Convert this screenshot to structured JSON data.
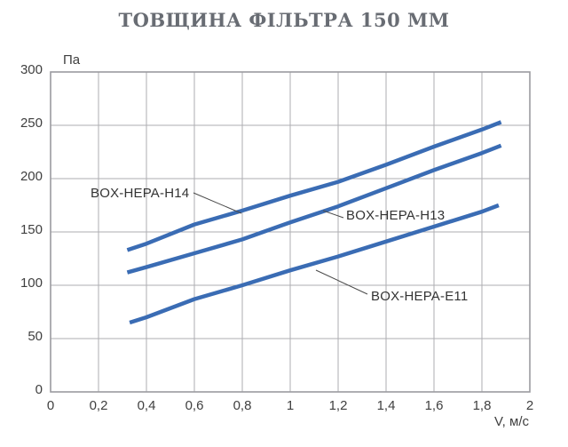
{
  "chart_data": {
    "type": "line",
    "title": "ТОВЩИНА ФІЛЬТРА 150 ММ",
    "y_unit_label": "Па",
    "x_unit_label": "V, м/с",
    "xlim": [
      0,
      2
    ],
    "ylim": [
      0,
      300
    ],
    "grid": true,
    "legend_position": "inline-annotations",
    "x_tick_values": [
      0,
      0.2,
      0.4,
      0.6,
      0.8,
      1,
      1.2,
      1.4,
      1.6,
      1.8,
      2
    ],
    "x_tick_labels": [
      "0",
      "0,2",
      "0,4",
      "0,6",
      "0,8",
      "1",
      "1,2",
      "1,4",
      "1,6",
      "1,8",
      "2"
    ],
    "y_tick_values": [
      0,
      50,
      100,
      150,
      200,
      250,
      300
    ],
    "y_tick_labels": [
      "0",
      "50",
      "100",
      "150",
      "200",
      "250",
      "300"
    ],
    "colors": {
      "curve": "#3a6cb4",
      "grid": "#aeaeb2",
      "border": "#9b9ba0",
      "title": "#686c73",
      "tick_text": "#3f3f3f",
      "label_text": "#333333",
      "leader": "#4a4a4a"
    },
    "series": [
      {
        "name": "BOX-HEPA-H14",
        "points": [
          [
            0.32,
            133
          ],
          [
            0.4,
            139
          ],
          [
            0.6,
            157
          ],
          [
            0.8,
            170
          ],
          [
            1.0,
            184
          ],
          [
            1.2,
            197
          ],
          [
            1.4,
            213
          ],
          [
            1.6,
            230
          ],
          [
            1.8,
            246
          ],
          [
            1.88,
            253
          ]
        ]
      },
      {
        "name": "BOX-HEPA-H13",
        "points": [
          [
            0.32,
            112
          ],
          [
            0.4,
            117
          ],
          [
            0.6,
            130
          ],
          [
            0.8,
            143
          ],
          [
            1.0,
            159
          ],
          [
            1.2,
            174
          ],
          [
            1.4,
            191
          ],
          [
            1.6,
            208
          ],
          [
            1.8,
            224
          ],
          [
            1.88,
            231
          ]
        ]
      },
      {
        "name": "BOX-HEPA-E11",
        "points": [
          [
            0.33,
            65
          ],
          [
            0.4,
            70
          ],
          [
            0.6,
            87
          ],
          [
            0.8,
            100
          ],
          [
            1.0,
            114
          ],
          [
            1.2,
            127
          ],
          [
            1.4,
            141
          ],
          [
            1.6,
            155
          ],
          [
            1.8,
            169
          ],
          [
            1.87,
            175
          ]
        ]
      }
    ],
    "annotations": [
      {
        "label": "BOX-HEPA-H14",
        "text_x": 102,
        "text_y": 222,
        "anchor": "start",
        "leader": [
          [
            218,
            217
          ],
          [
            272,
            240
          ]
        ]
      },
      {
        "label": "BOX-HEPA-H13",
        "text_x": 390,
        "text_y": 247,
        "anchor": "start",
        "leader": [
          [
            364,
            237
          ],
          [
            387,
            245
          ]
        ]
      },
      {
        "label": "BOX-HEPA-E11",
        "text_x": 418,
        "text_y": 338,
        "anchor": "start",
        "leader": [
          [
            356,
            304
          ],
          [
            414,
            331
          ]
        ]
      }
    ]
  }
}
